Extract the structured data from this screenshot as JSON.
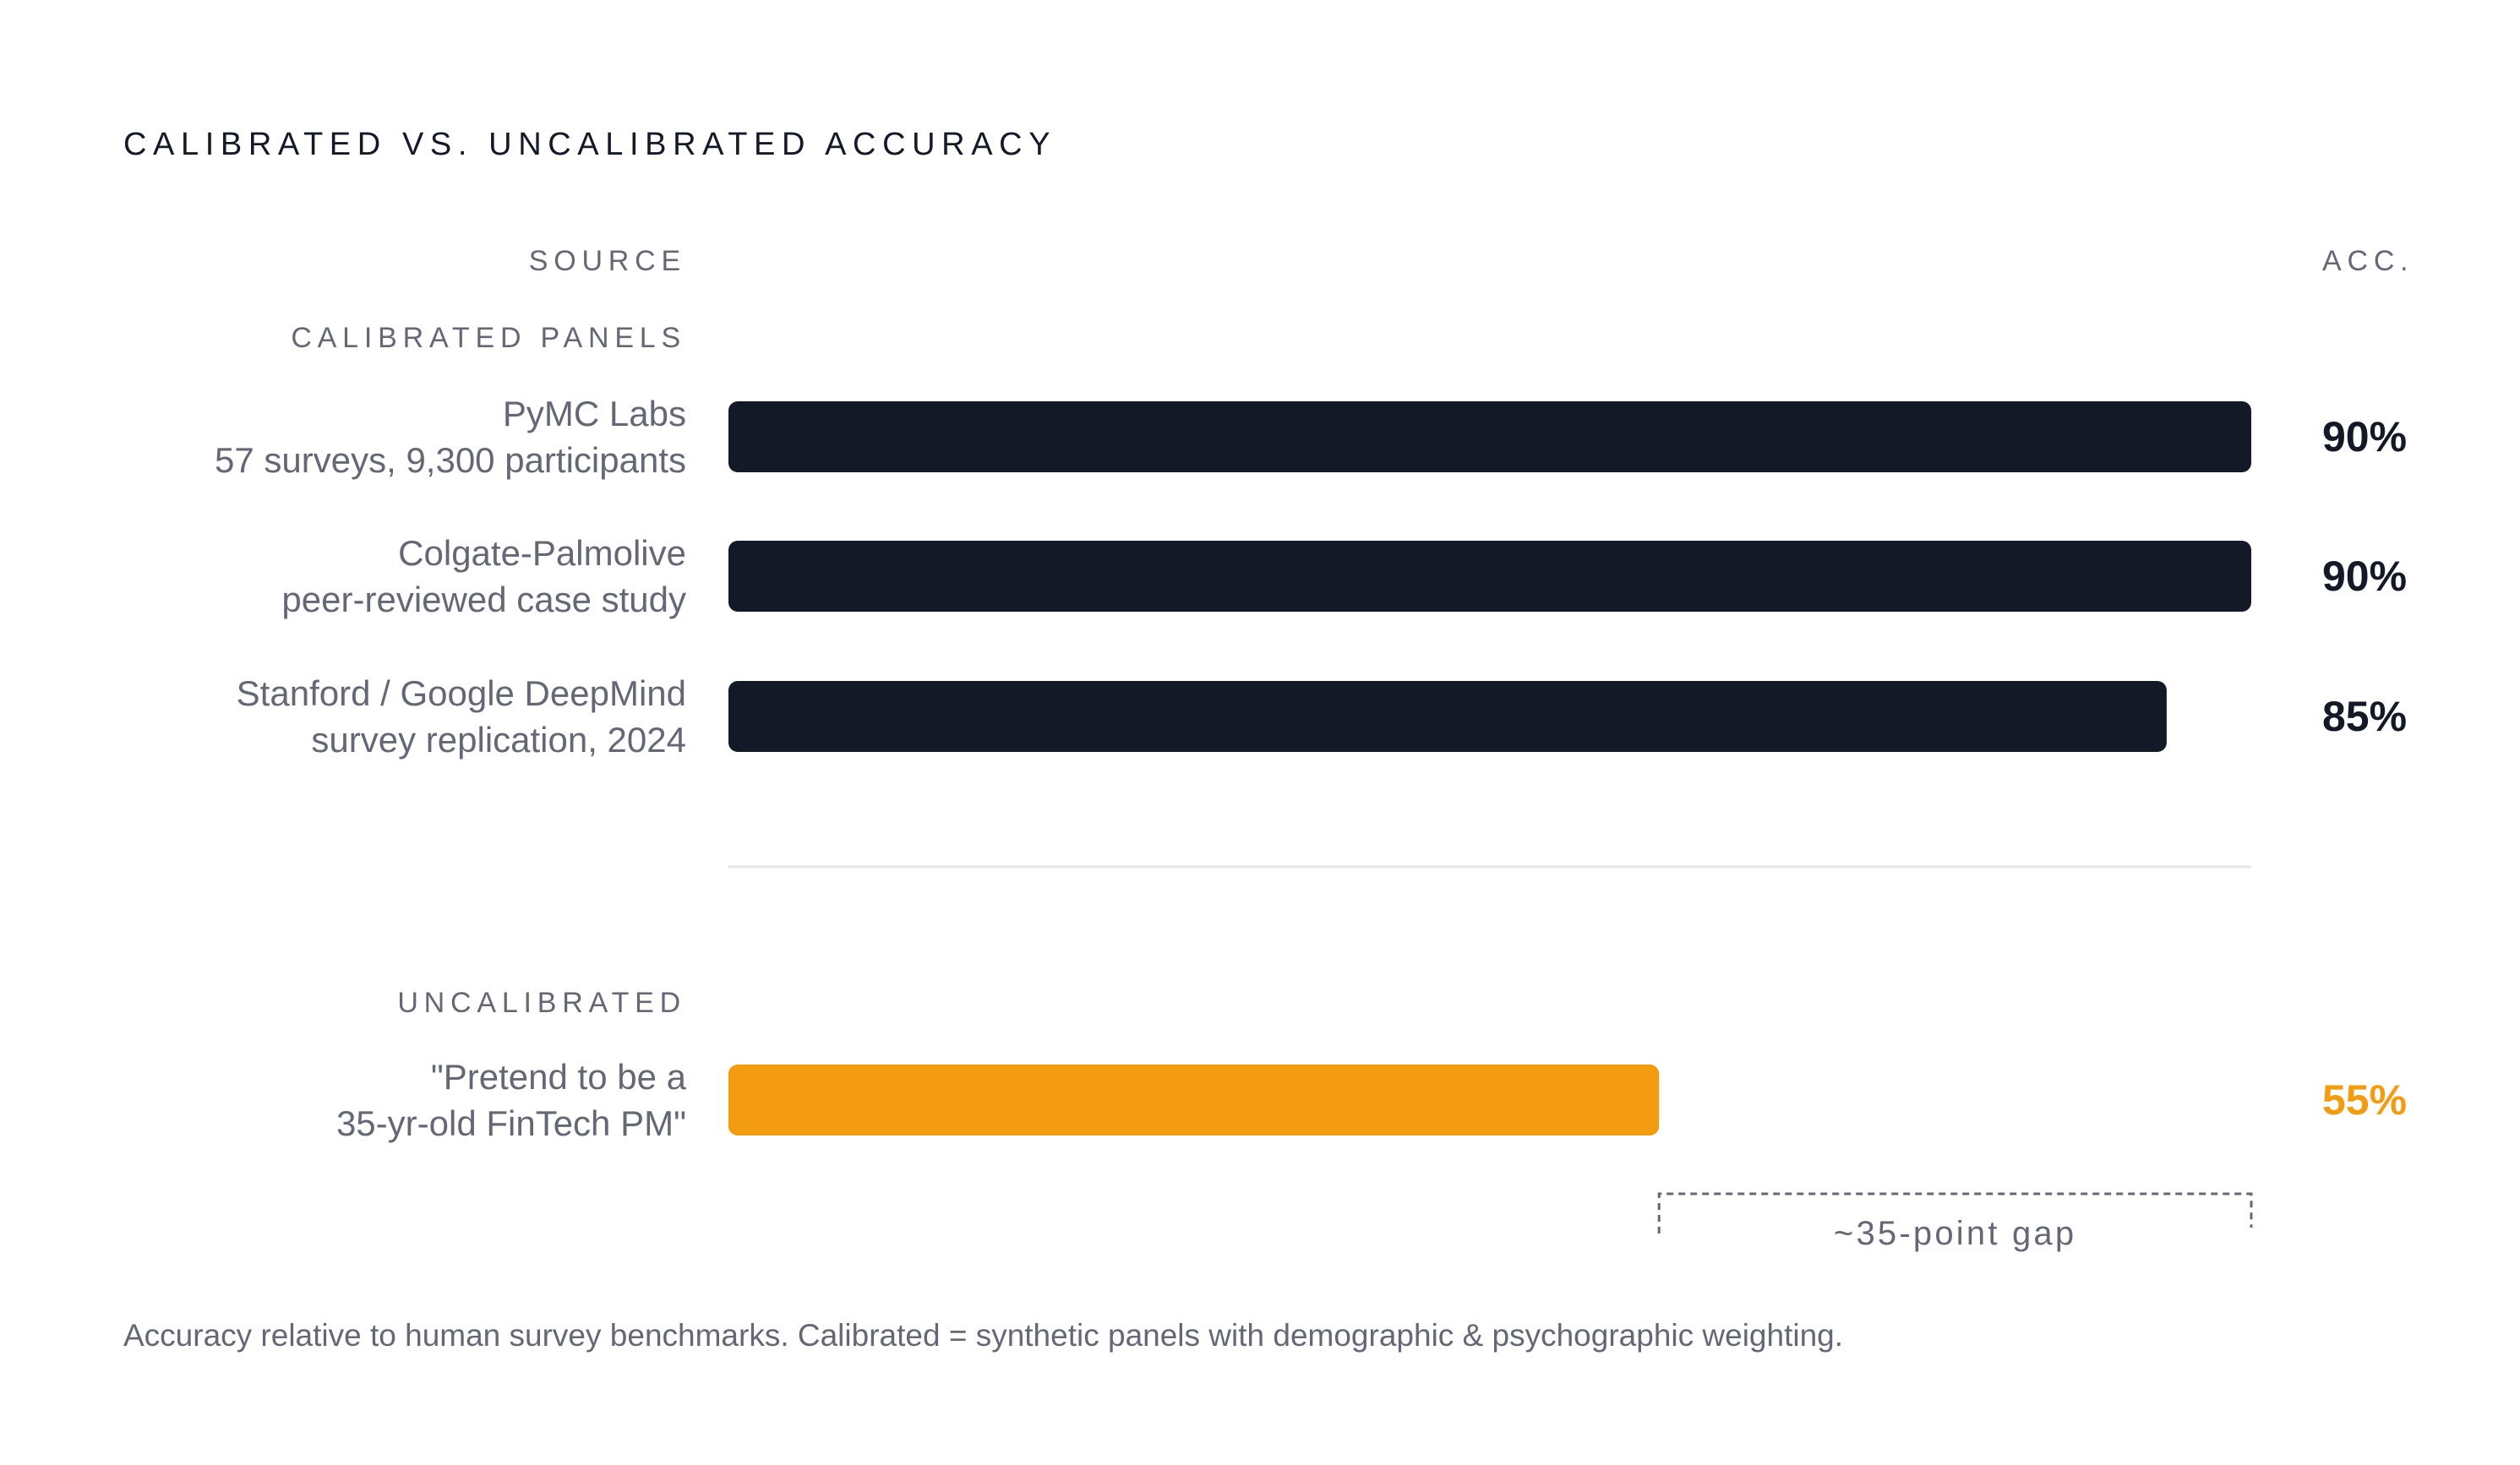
{
  "chart_data": {
    "type": "bar",
    "orientation": "horizontal",
    "title": "CALIBRATED VS. UNCALIBRATED ACCURACY",
    "column_headers": {
      "source": "SOURCE",
      "value": "ACC."
    },
    "xlim": [
      0,
      90
    ],
    "groups": [
      {
        "label": "CALIBRATED PANELS",
        "color": "#131927",
        "bars": [
          {
            "name": "PyMC Labs",
            "detail": "57 surveys, 9,300 participants",
            "value": 90,
            "value_label": "90%"
          },
          {
            "name": "Colgate-Palmolive",
            "detail": "peer-reviewed case study",
            "value": 90,
            "value_label": "90%"
          },
          {
            "name": "Stanford / Google DeepMind",
            "detail": "survey replication, 2024",
            "value": 85,
            "value_label": "85%"
          }
        ]
      },
      {
        "label": "UNCALIBRATED",
        "color": "#f39c12",
        "bars": [
          {
            "name": "\"Pretend to be a",
            "detail": "35-yr-old FinTech PM\"",
            "value": 55,
            "value_label": "55%"
          }
        ]
      }
    ],
    "annotation": {
      "text": "~35-point gap",
      "from": 55,
      "to": 90
    },
    "footnote": "Accuracy relative to human survey benchmarks. Calibrated = synthetic panels with demographic & psychographic weighting."
  },
  "colors": {
    "calibrated": "#131927",
    "uncalibrated": "#f39c12",
    "muted_text": "#646875",
    "title_text": "#131927",
    "divider": "#e4e6ea"
  }
}
